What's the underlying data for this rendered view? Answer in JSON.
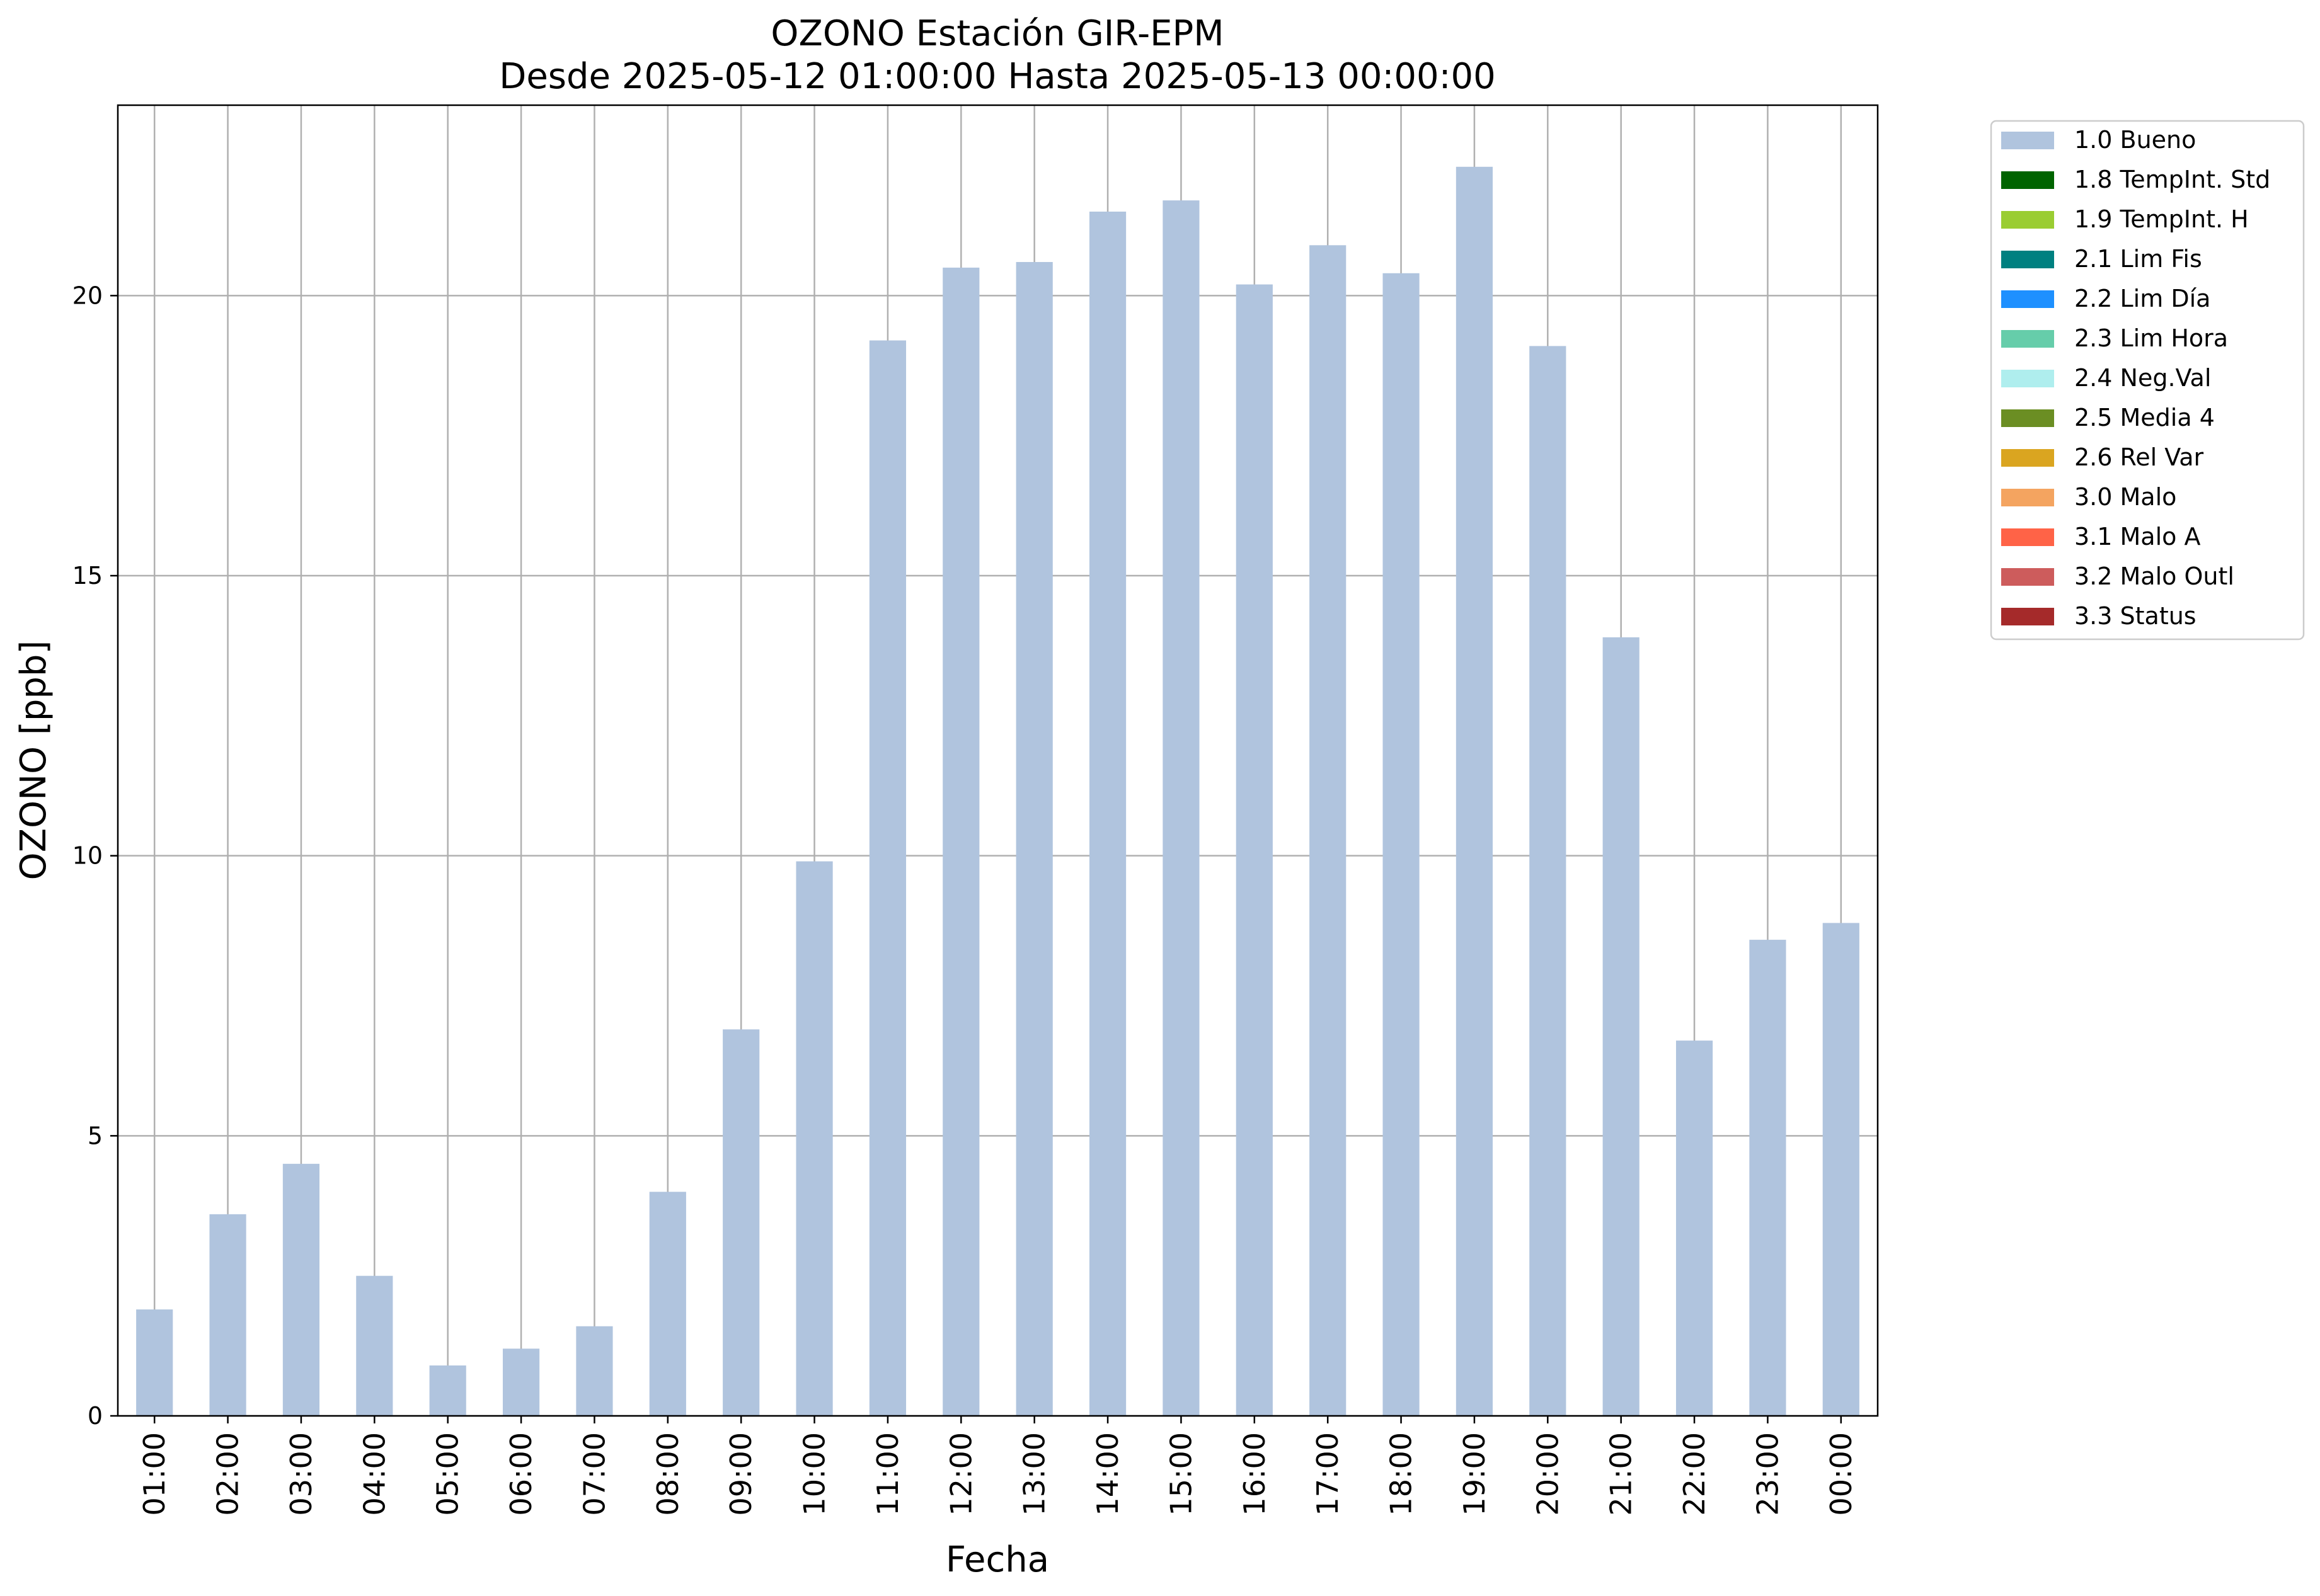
{
  "chart_data": {
    "type": "bar",
    "title": "OZONO Estación GIR-EPM",
    "subtitle": "Desde 2025-05-12 01:00:00 Hasta 2025-05-13 00:00:00",
    "xlabel": "Fecha",
    "ylabel": "OZONO [ppb]",
    "ylim": [
      0,
      23.4
    ],
    "yticks": [
      "0",
      "5",
      "10",
      "15",
      "20"
    ],
    "grid": true,
    "legend_position": "outside-top-right",
    "categories": [
      "01:00",
      "02:00",
      "03:00",
      "04:00",
      "05:00",
      "06:00",
      "07:00",
      "08:00",
      "09:00",
      "10:00",
      "11:00",
      "12:00",
      "13:00",
      "14:00",
      "15:00",
      "16:00",
      "17:00",
      "18:00",
      "19:00",
      "20:00",
      "21:00",
      "22:00",
      "23:00",
      "00:00"
    ],
    "series": [
      {
        "name": "1.0 Bueno",
        "color": "#b0c4de",
        "values": [
          1.9,
          3.6,
          4.5,
          2.5,
          0.9,
          1.2,
          1.6,
          4.0,
          6.9,
          9.9,
          19.2,
          20.5,
          20.6,
          21.5,
          21.7,
          20.2,
          20.9,
          20.4,
          22.3,
          19.1,
          13.9,
          6.7,
          8.5,
          8.8
        ]
      }
    ],
    "legend": [
      {
        "label": "1.0 Bueno",
        "color": "#b0c4de"
      },
      {
        "label": "1.8 TempInt. Std",
        "color": "#006400"
      },
      {
        "label": "1.9 TempInt. H",
        "color": "#9acd32"
      },
      {
        "label": "2.1 Lim Fis",
        "color": "#008080"
      },
      {
        "label": "2.2 Lim Día",
        "color": "#1e90ff"
      },
      {
        "label": "2.3 Lim Hora",
        "color": "#66cdaa"
      },
      {
        "label": "2.4 Neg.Val",
        "color": "#afeeee"
      },
      {
        "label": "2.5 Media 4",
        "color": "#6b8e23"
      },
      {
        "label": "2.6 Rel Var",
        "color": "#daa520"
      },
      {
        "label": "3.0 Malo",
        "color": "#f4a460"
      },
      {
        "label": "3.1 Malo A",
        "color": "#ff6347"
      },
      {
        "label": "3.2 Malo Outl",
        "color": "#cd5c5c"
      },
      {
        "label": "3.3 Status",
        "color": "#a52a2a"
      }
    ]
  }
}
